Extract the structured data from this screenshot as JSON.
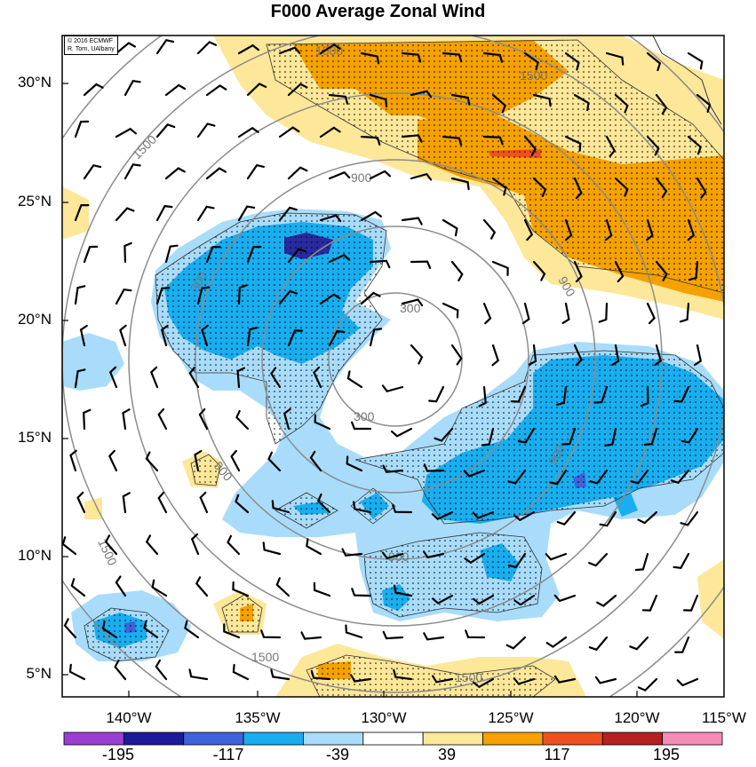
{
  "title": "F000 Average Zonal Wind",
  "credit": {
    "line1": "© 2016 ECMWF",
    "line2": "R. Torn, UAlbany"
  },
  "lat_labels": [
    "30°N",
    "25°N",
    "20°N",
    "15°N",
    "10°N",
    "5°N"
  ],
  "lon_labels": [
    "140°W",
    "135°W",
    "130°W",
    "125°W",
    "120°W",
    "115°W"
  ],
  "contour_labels": [
    "300",
    "300",
    "300",
    "900",
    "900",
    "900",
    "900",
    "900",
    "1500",
    "1500",
    "1500",
    "1500",
    "1500",
    "1500"
  ],
  "colorbar": {
    "tick_labels": [
      "-195",
      "-117",
      "-39",
      "39",
      "117",
      "195"
    ],
    "colors": [
      "#9b3fd2",
      "#1a1a9a",
      "#3f62db",
      "#18aef0",
      "#a8dcfa",
      "#ffffff",
      "#fde799",
      "#f5a100",
      "#f05020",
      "#b52020",
      "#f58cb8"
    ]
  },
  "fill_colors": {
    "light_blue": "#a8dcfa",
    "blue": "#18aef0",
    "dark_blue": "#3f62db",
    "navy": "#2a2aa0",
    "yellow": "#fde799",
    "orange": "#f5a100",
    "red": "#f05020"
  }
}
